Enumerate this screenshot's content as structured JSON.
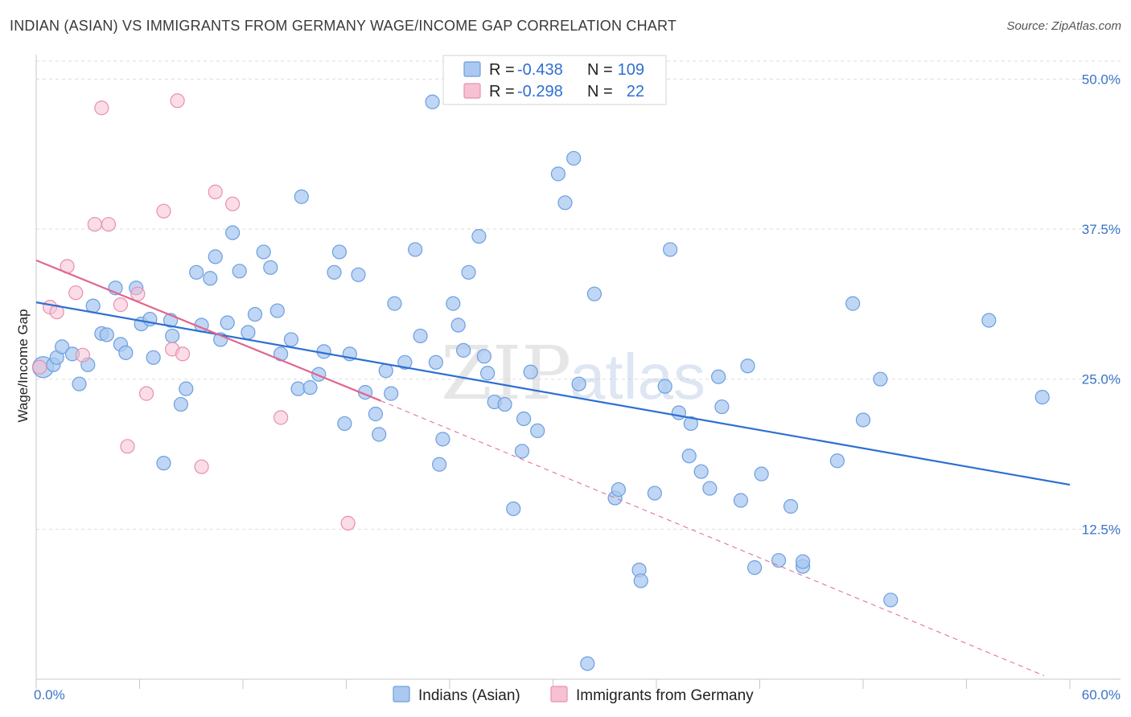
{
  "title": "INDIAN (ASIAN) VS IMMIGRANTS FROM GERMANY WAGE/INCOME GAP CORRELATION CHART",
  "source": "Source: ZipAtlas.com",
  "colors": {
    "blue_fill": "#aac8f0",
    "blue_stroke": "#6c9fe0",
    "blue_line": "#2e6fd1",
    "pink_fill": "#f6c1d2",
    "pink_stroke": "#e98fae",
    "pink_line": "#e0668f",
    "grid": "#dddddd",
    "tick_label": "#3a73c8"
  },
  "legend": {
    "r_label": "R =",
    "n_label": "N =",
    "series1": {
      "r": "-0.438",
      "n": "109"
    },
    "series2": {
      "r": "-0.298",
      "n": "22"
    }
  },
  "watermark": {
    "zip": "ZIP",
    "atlas": "atlas"
  },
  "chart_data": {
    "type": "scatter",
    "title": "INDIAN (ASIAN) VS IMMIGRANTS FROM GERMANY WAGE/INCOME GAP CORRELATION CHART",
    "xlabel": "",
    "ylabel": "Wage/Income Gap",
    "xlim": [
      0,
      60
    ],
    "ylim": [
      0,
      51.5
    ],
    "x_tick_labels": [
      "0.0%",
      "60.0%"
    ],
    "y_ticks": [
      12.5,
      25.0,
      37.5,
      50.0
    ],
    "y_tick_labels": [
      "12.5%",
      "25.0%",
      "37.5%",
      "50.0%"
    ],
    "grid": true,
    "legend_position": "top-center",
    "series": [
      {
        "name": "Indians (Asian)",
        "r": -0.438,
        "n": 109,
        "trend": {
          "x": [
            0,
            60
          ],
          "y": [
            31.4,
            16.2
          ]
        },
        "points": [
          [
            0.4,
            26.0
          ],
          [
            1.0,
            26.2
          ],
          [
            1.2,
            26.8
          ],
          [
            1.5,
            27.7
          ],
          [
            2.1,
            27.1
          ],
          [
            2.5,
            24.6
          ],
          [
            3.0,
            26.2
          ],
          [
            3.3,
            31.1
          ],
          [
            3.8,
            28.8
          ],
          [
            4.1,
            28.7
          ],
          [
            4.6,
            32.6
          ],
          [
            4.9,
            27.9
          ],
          [
            5.2,
            27.2
          ],
          [
            5.8,
            32.6
          ],
          [
            6.1,
            29.6
          ],
          [
            6.6,
            30.0
          ],
          [
            6.8,
            26.8
          ],
          [
            7.4,
            18.0
          ],
          [
            7.8,
            29.9
          ],
          [
            7.9,
            28.6
          ],
          [
            8.4,
            22.9
          ],
          [
            8.7,
            24.2
          ],
          [
            9.3,
            33.9
          ],
          [
            9.6,
            29.5
          ],
          [
            10.1,
            33.4
          ],
          [
            10.4,
            35.2
          ],
          [
            10.7,
            28.3
          ],
          [
            11.1,
            29.7
          ],
          [
            11.4,
            37.2
          ],
          [
            11.8,
            34.0
          ],
          [
            12.3,
            28.9
          ],
          [
            12.7,
            30.4
          ],
          [
            13.2,
            35.6
          ],
          [
            13.6,
            34.3
          ],
          [
            14.0,
            30.7
          ],
          [
            14.2,
            27.1
          ],
          [
            14.8,
            28.3
          ],
          [
            15.2,
            24.2
          ],
          [
            15.4,
            40.2
          ],
          [
            15.9,
            24.3
          ],
          [
            16.4,
            25.4
          ],
          [
            16.7,
            27.3
          ],
          [
            17.3,
            33.9
          ],
          [
            17.6,
            35.6
          ],
          [
            17.9,
            21.3
          ],
          [
            18.2,
            27.1
          ],
          [
            18.7,
            33.7
          ],
          [
            19.1,
            23.9
          ],
          [
            19.7,
            22.1
          ],
          [
            19.9,
            20.4
          ],
          [
            20.3,
            25.7
          ],
          [
            20.6,
            23.8
          ],
          [
            20.8,
            31.3
          ],
          [
            21.4,
            26.4
          ],
          [
            22.0,
            35.8
          ],
          [
            22.3,
            28.6
          ],
          [
            23.0,
            48.1
          ],
          [
            23.2,
            26.4
          ],
          [
            23.4,
            17.9
          ],
          [
            23.6,
            20.0
          ],
          [
            24.2,
            31.3
          ],
          [
            24.5,
            29.5
          ],
          [
            24.8,
            27.4
          ],
          [
            25.1,
            33.9
          ],
          [
            25.7,
            36.9
          ],
          [
            26.0,
            26.9
          ],
          [
            26.2,
            25.5
          ],
          [
            26.6,
            23.1
          ],
          [
            27.2,
            22.9
          ],
          [
            27.7,
            14.2
          ],
          [
            28.2,
            19.0
          ],
          [
            28.3,
            21.7
          ],
          [
            28.7,
            25.6
          ],
          [
            29.1,
            20.7
          ],
          [
            30.3,
            42.1
          ],
          [
            30.7,
            39.7
          ],
          [
            31.2,
            43.4
          ],
          [
            31.5,
            24.6
          ],
          [
            32.0,
            1.3
          ],
          [
            32.4,
            32.1
          ],
          [
            33.6,
            15.1
          ],
          [
            33.8,
            15.8
          ],
          [
            35.0,
            9.1
          ],
          [
            35.1,
            8.2
          ],
          [
            35.9,
            15.5
          ],
          [
            36.5,
            24.4
          ],
          [
            36.8,
            35.8
          ],
          [
            37.3,
            22.2
          ],
          [
            37.9,
            18.6
          ],
          [
            38.0,
            21.3
          ],
          [
            38.6,
            17.3
          ],
          [
            39.1,
            15.9
          ],
          [
            39.6,
            25.2
          ],
          [
            39.8,
            22.7
          ],
          [
            40.9,
            14.9
          ],
          [
            41.3,
            26.1
          ],
          [
            41.7,
            9.3
          ],
          [
            42.1,
            17.1
          ],
          [
            43.1,
            9.9
          ],
          [
            43.8,
            14.4
          ],
          [
            44.5,
            9.4
          ],
          [
            44.5,
            9.8
          ],
          [
            46.5,
            18.2
          ],
          [
            47.4,
            31.3
          ],
          [
            48.0,
            21.6
          ],
          [
            49.0,
            25.0
          ],
          [
            49.6,
            6.6
          ],
          [
            55.3,
            29.9
          ],
          [
            58.4,
            23.5
          ]
        ]
      },
      {
        "name": "Immigrants from Germany",
        "r": -0.298,
        "n": 22,
        "trend": {
          "x": [
            0,
            20.0
          ],
          "y": [
            34.9,
            23.2
          ]
        },
        "trend_dashed": {
          "x": [
            20.0,
            58.5
          ],
          "y": [
            23.2,
            0.3
          ]
        },
        "points": [
          [
            0.2,
            26.0
          ],
          [
            0.8,
            31.0
          ],
          [
            1.2,
            30.6
          ],
          [
            1.8,
            34.4
          ],
          [
            2.3,
            32.2
          ],
          [
            2.7,
            27.0
          ],
          [
            3.4,
            37.9
          ],
          [
            4.2,
            37.9
          ],
          [
            4.9,
            31.2
          ],
          [
            5.3,
            19.4
          ],
          [
            5.9,
            32.1
          ],
          [
            6.4,
            23.8
          ],
          [
            7.4,
            39.0
          ],
          [
            7.9,
            27.5
          ],
          [
            8.2,
            48.2
          ],
          [
            8.5,
            27.1
          ],
          [
            9.6,
            17.7
          ],
          [
            10.4,
            40.6
          ],
          [
            11.4,
            39.6
          ],
          [
            14.2,
            21.8
          ],
          [
            18.1,
            13.0
          ],
          [
            3.8,
            47.6
          ]
        ]
      }
    ]
  },
  "bottom_legend": [
    "Indians (Asian)",
    "Immigrants from Germany"
  ]
}
